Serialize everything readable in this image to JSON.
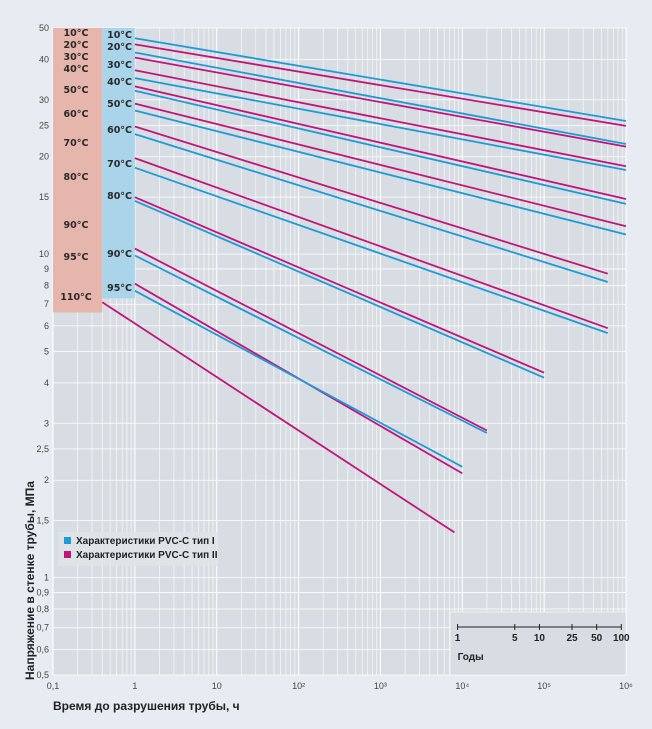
{
  "chart_data": {
    "type": "line",
    "xscale": "log",
    "yscale": "log",
    "xlim": [
      0.1,
      1000000
    ],
    "ylim": [
      0.5,
      50
    ],
    "xlabel": "Время до разрушения трубы, ч",
    "ylabel": "Напряжение в стенке трубы, МПа",
    "x_tick_labels": [
      {
        "value": 0.1,
        "label": "0,1"
      },
      {
        "value": 1,
        "label": "1"
      },
      {
        "value": 10,
        "label": "10"
      },
      {
        "value": 100,
        "label": "10²"
      },
      {
        "value": 1000,
        "label": "10³"
      },
      {
        "value": 10000,
        "label": "10⁴"
      },
      {
        "value": 100000,
        "label": "10⁵"
      },
      {
        "value": 1000000,
        "label": "10⁶"
      }
    ],
    "y_tick_labels": [
      {
        "value": 50,
        "label": "50"
      },
      {
        "value": 40,
        "label": "40"
      },
      {
        "value": 30,
        "label": "30"
      },
      {
        "value": 25,
        "label": "25"
      },
      {
        "value": 20,
        "label": "20"
      },
      {
        "value": 15,
        "label": "15"
      },
      {
        "value": 10,
        "label": "10"
      },
      {
        "value": 9,
        "label": "9"
      },
      {
        "value": 8,
        "label": "8"
      },
      {
        "value": 7,
        "label": "7"
      },
      {
        "value": 6,
        "label": "6"
      },
      {
        "value": 5,
        "label": "5"
      },
      {
        "value": 4,
        "label": "4"
      },
      {
        "value": 3,
        "label": "3"
      },
      {
        "value": 2.5,
        "label": "2,5"
      },
      {
        "value": 2,
        "label": "2"
      },
      {
        "value": 1.5,
        "label": "1,5"
      },
      {
        "value": 1,
        "label": "1"
      },
      {
        "value": 0.9,
        "label": "0,9"
      },
      {
        "value": 0.8,
        "label": "0,8"
      },
      {
        "value": 0.7,
        "label": "0,7"
      },
      {
        "value": 0.6,
        "label": "0,6"
      },
      {
        "value": 0.5,
        "label": "0,5"
      }
    ],
    "grid": true,
    "legend": {
      "placement": "bottom-left",
      "entries": [
        {
          "label": "Характеристики PVC-C тип I",
          "color": "#1f9ad6"
        },
        {
          "label": "Характеристики PVC-C тип II",
          "color": "#c0157a"
        }
      ]
    },
    "temperature_labels_type2": [
      "10°C",
      "20°C",
      "30°C",
      "40°C",
      "50°C",
      "60°C",
      "70°C",
      "80°C",
      "90°C",
      "95°C",
      "110°C"
    ],
    "temperature_labels_type1": [
      "10°C",
      "20°C",
      "30°C",
      "40°C",
      "50°C",
      "60°C",
      "70°C",
      "80°C",
      "90°C",
      "95°C"
    ],
    "years_scale": {
      "label": "Годы",
      "ticks": [
        {
          "years": 1,
          "label": "1"
        },
        {
          "years": 5,
          "label": "5"
        },
        {
          "years": 10,
          "label": "10"
        },
        {
          "years": 25,
          "label": "25"
        },
        {
          "years": 50,
          "label": "50"
        },
        {
          "years": 100,
          "label": "100"
        }
      ]
    },
    "series": [
      {
        "type": "I",
        "temp": "10°C",
        "color": "#1f9ad6",
        "points": [
          [
            1,
            46.5
          ],
          [
            1000000,
            25.8
          ]
        ]
      },
      {
        "type": "II",
        "temp": "10°C",
        "color": "#c0157a",
        "points": [
          [
            1,
            44.5
          ],
          [
            1000000,
            24.9
          ]
        ]
      },
      {
        "type": "I",
        "temp": "20°C",
        "color": "#1f9ad6",
        "points": [
          [
            1,
            42
          ],
          [
            1000000,
            21.9
          ]
        ]
      },
      {
        "type": "II",
        "temp": "20°C",
        "color": "#c0157a",
        "points": [
          [
            1,
            40.5
          ],
          [
            1000000,
            21.5
          ]
        ]
      },
      {
        "type": "II",
        "temp": "30°C",
        "color": "#c0157a",
        "points": [
          [
            1,
            37
          ],
          [
            1000000,
            18.7
          ]
        ]
      },
      {
        "type": "I",
        "temp": "30°C",
        "color": "#1f9ad6",
        "points": [
          [
            1,
            35
          ],
          [
            1000000,
            18.2
          ]
        ]
      },
      {
        "type": "II",
        "temp": "40°C",
        "color": "#c0157a",
        "points": [
          [
            1,
            33
          ],
          [
            1000000,
            14.8
          ]
        ]
      },
      {
        "type": "I",
        "temp": "40°C",
        "color": "#1f9ad6",
        "points": [
          [
            1,
            32
          ],
          [
            1000000,
            14.3
          ]
        ]
      },
      {
        "type": "II",
        "temp": "50°C",
        "color": "#c0157a",
        "points": [
          [
            1,
            29.2
          ],
          [
            1000000,
            12.2
          ]
        ]
      },
      {
        "type": "I",
        "temp": "50°C",
        "color": "#1f9ad6",
        "points": [
          [
            1,
            27.8
          ],
          [
            1000000,
            11.5
          ]
        ]
      },
      {
        "type": "II",
        "temp": "60°C",
        "color": "#c0157a",
        "points": [
          [
            1,
            24.8
          ],
          [
            600000,
            8.7
          ]
        ]
      },
      {
        "type": "I",
        "temp": "60°C",
        "color": "#1f9ad6",
        "points": [
          [
            1,
            23.5
          ],
          [
            600000,
            8.2
          ]
        ]
      },
      {
        "type": "II",
        "temp": "70°C",
        "color": "#c0157a",
        "points": [
          [
            1,
            19.8
          ],
          [
            600000,
            5.9
          ]
        ]
      },
      {
        "type": "I",
        "temp": "70°C",
        "color": "#1f9ad6",
        "points": [
          [
            1,
            18.5
          ],
          [
            600000,
            5.7
          ]
        ]
      },
      {
        "type": "II",
        "temp": "80°C",
        "color": "#c0157a",
        "points": [
          [
            1,
            15
          ],
          [
            100000,
            4.3
          ]
        ]
      },
      {
        "type": "I",
        "temp": "80°C",
        "color": "#1f9ad6",
        "points": [
          [
            1,
            14.6
          ],
          [
            100000,
            4.15
          ]
        ]
      },
      {
        "type": "II",
        "temp": "90°C",
        "color": "#c0157a",
        "points": [
          [
            1,
            10.4
          ],
          [
            20000,
            2.85
          ]
        ]
      },
      {
        "type": "I",
        "temp": "90°C",
        "color": "#1f9ad6",
        "points": [
          [
            1,
            9.9
          ],
          [
            20000,
            2.8
          ]
        ]
      },
      {
        "type": "II",
        "temp": "95°C",
        "color": "#c0157a",
        "points": [
          [
            1,
            8.1
          ],
          [
            10000,
            2.1
          ]
        ]
      },
      {
        "type": "I",
        "temp": "95°C",
        "color": "#1f9ad6",
        "points": [
          [
            1,
            7.7
          ],
          [
            10000,
            2.2
          ]
        ]
      },
      {
        "type": "II",
        "temp": "110°C",
        "color": "#c0157a",
        "points": [
          [
            0.4,
            7.1
          ],
          [
            8000,
            1.38
          ]
        ]
      }
    ]
  },
  "colors": {
    "plot_bg": "#d7dde2",
    "gridline": "#ffffff",
    "type1_panel": "#a9d4ea",
    "type2_panel": "#e6b5ab"
  }
}
